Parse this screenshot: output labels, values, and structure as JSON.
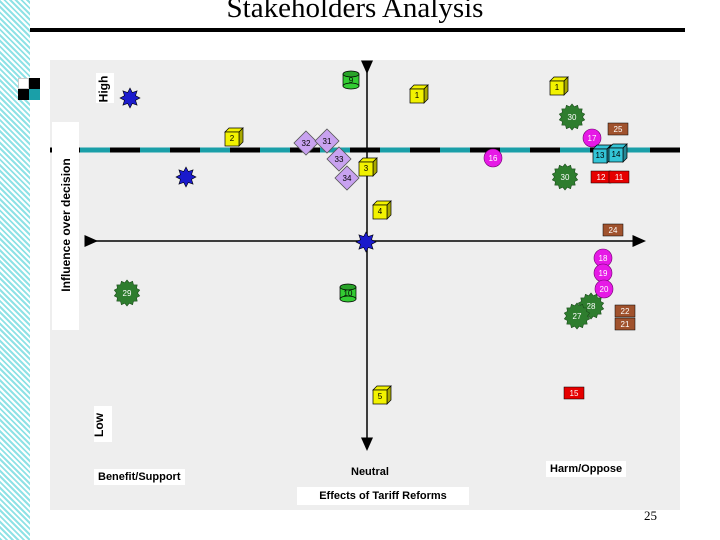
{
  "slide": {
    "title": "Stakeholders Analysis",
    "page_number": "25"
  },
  "axes": {
    "y_high": "High",
    "y_low": "Low",
    "y_label": "Influence over decision",
    "x_left": "Benefit/Support",
    "x_center": "Neutral",
    "x_right": "Harm/Oppose",
    "x_label": "Effects of Tariff Reforms"
  },
  "colors": {
    "yellow": "#f2f200",
    "green_cyl": "#33cc33",
    "dark_green": "#2e7d2e",
    "magenta": "#e619e6",
    "lavender": "#c8a2f0",
    "brown": "#a0522d",
    "red": "#e60000",
    "cyan": "#33c4d6",
    "blue_star": "#1a1acc",
    "dash_cyan": "#1a9fa8"
  },
  "markers": [
    {
      "label": "9",
      "shape": "cylinder",
      "color": "green_cyl"
    },
    {
      "label": "1",
      "shape": "cube",
      "color": "yellow"
    },
    {
      "label": "1",
      "shape": "cube",
      "color": "yellow"
    },
    {
      "label": "2",
      "shape": "cube",
      "color": "yellow"
    },
    {
      "label": "32",
      "shape": "diamond",
      "color": "lavender"
    },
    {
      "label": "31",
      "shape": "diamond",
      "color": "lavender"
    },
    {
      "label": "33",
      "shape": "diamond",
      "color": "lavender"
    },
    {
      "label": "34",
      "shape": "diamond",
      "color": "lavender"
    },
    {
      "label": "3",
      "shape": "cube",
      "color": "yellow"
    },
    {
      "label": "4",
      "shape": "cube",
      "color": "yellow"
    },
    {
      "label": "5",
      "shape": "cube",
      "color": "yellow"
    },
    {
      "label": "10",
      "shape": "cylinder",
      "color": "green_cyl"
    },
    {
      "label": "29",
      "shape": "seal",
      "color": "dark_green"
    },
    {
      "label": "30",
      "shape": "seal",
      "color": "dark_green"
    },
    {
      "label": "30",
      "shape": "seal",
      "color": "dark_green"
    },
    {
      "label": "16",
      "shape": "circle",
      "color": "magenta"
    },
    {
      "label": "17",
      "shape": "circle",
      "color": "magenta"
    },
    {
      "label": "25",
      "shape": "box",
      "color": "brown"
    },
    {
      "label": "13",
      "shape": "cube",
      "color": "cyan"
    },
    {
      "label": "14",
      "shape": "cube",
      "color": "cyan"
    },
    {
      "label": "12",
      "shape": "box",
      "color": "red"
    },
    {
      "label": "11",
      "shape": "box",
      "color": "red"
    },
    {
      "label": "24",
      "shape": "box",
      "color": "brown"
    },
    {
      "label": "18",
      "shape": "circle",
      "color": "magenta"
    },
    {
      "label": "19",
      "shape": "circle",
      "color": "magenta"
    },
    {
      "label": "20",
      "shape": "circle",
      "color": "magenta"
    },
    {
      "label": "28",
      "shape": "seal",
      "color": "dark_green"
    },
    {
      "label": "27",
      "shape": "seal",
      "color": "dark_green"
    },
    {
      "label": "22",
      "shape": "box",
      "color": "brown"
    },
    {
      "label": "21",
      "shape": "box",
      "color": "brown"
    },
    {
      "label": "15",
      "shape": "box",
      "color": "red"
    }
  ]
}
